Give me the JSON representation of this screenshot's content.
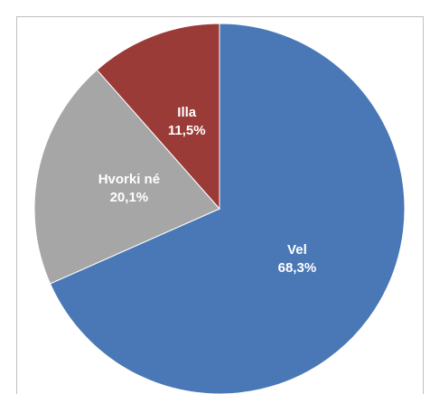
{
  "chart_data": {
    "type": "pie",
    "categories": [
      "Vel",
      "Hvorki né",
      "Illa"
    ],
    "values": [
      68.3,
      20.1,
      11.5
    ],
    "value_labels": [
      "68,3%",
      "20,1%",
      "11,5%"
    ],
    "colors": [
      "#4a78b6",
      "#a6a6a6",
      "#9b3b37"
    ]
  }
}
